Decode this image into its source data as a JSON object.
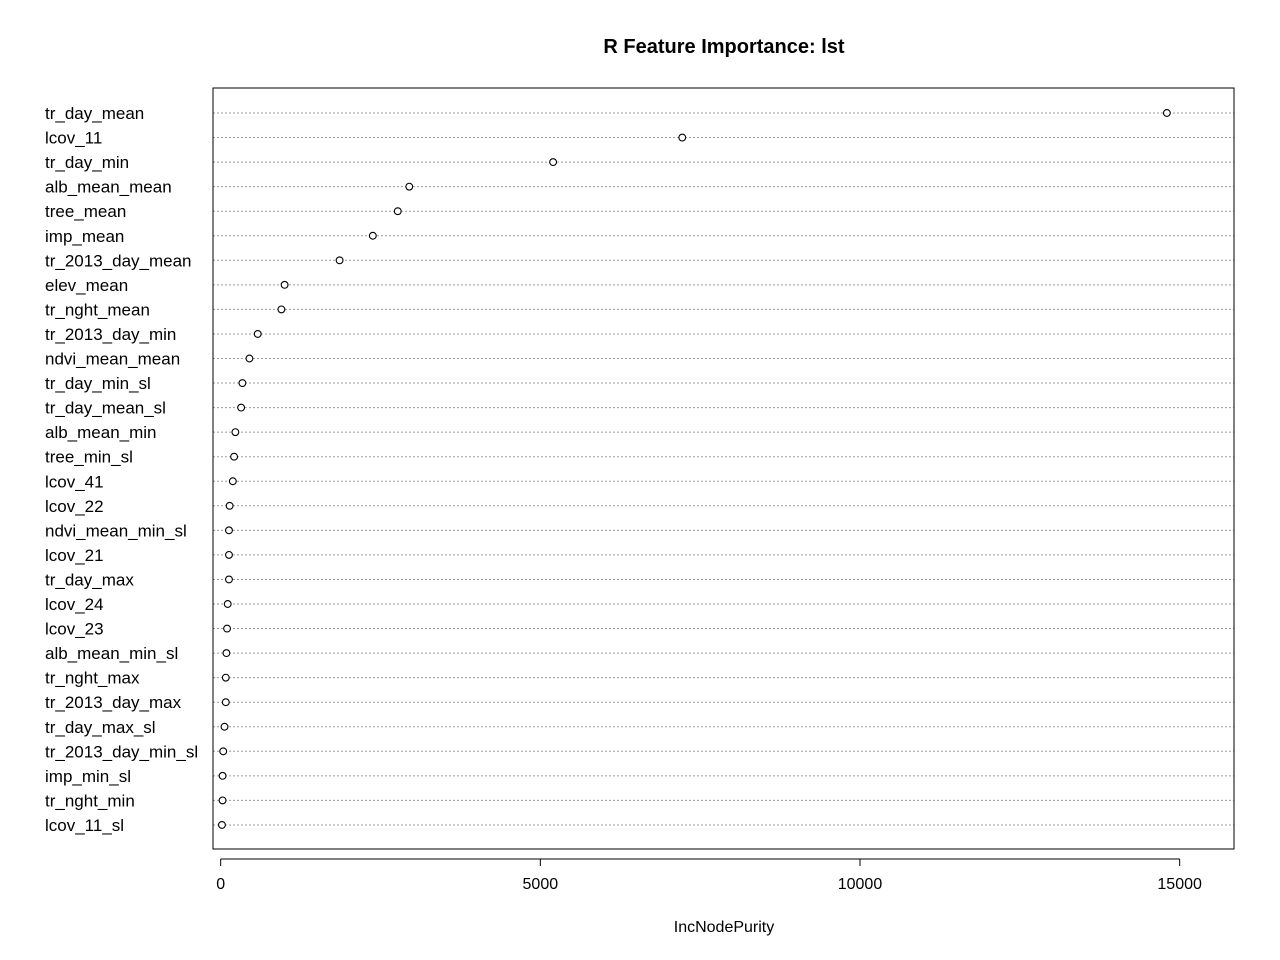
{
  "chart_data": {
    "type": "scatter",
    "title": "R Feature Importance: lst",
    "xlabel": "IncNodePurity",
    "ylabel": "",
    "xlim": [
      -120,
      15850
    ],
    "xticks": [
      0,
      5000,
      10000,
      15000
    ],
    "grid": "horizontal dotted",
    "categories": [
      "tr_day_mean",
      "lcov_11",
      "tr_day_min",
      "alb_mean_mean",
      "tree_mean",
      "imp_mean",
      "tr_2013_day_mean",
      "elev_mean",
      "tr_nght_mean",
      "tr_2013_day_min",
      "ndvi_mean_mean",
      "tr_day_min_sl",
      "tr_day_mean_sl",
      "alb_mean_min",
      "tree_min_sl",
      "lcov_41",
      "lcov_22",
      "ndvi_mean_min_sl",
      "lcov_21",
      "tr_day_max",
      "lcov_24",
      "lcov_23",
      "alb_mean_min_sl",
      "tr_nght_max",
      "tr_2013_day_max",
      "tr_day_max_sl",
      "tr_2013_day_min_sl",
      "imp_min_sl",
      "tr_nght_min",
      "lcov_11_sl"
    ],
    "values": [
      14800,
      7220,
      5200,
      2950,
      2770,
      2380,
      1860,
      1000,
      950,
      580,
      450,
      340,
      320,
      230,
      210,
      190,
      140,
      130,
      130,
      130,
      110,
      100,
      90,
      80,
      80,
      60,
      40,
      30,
      30,
      20
    ]
  }
}
